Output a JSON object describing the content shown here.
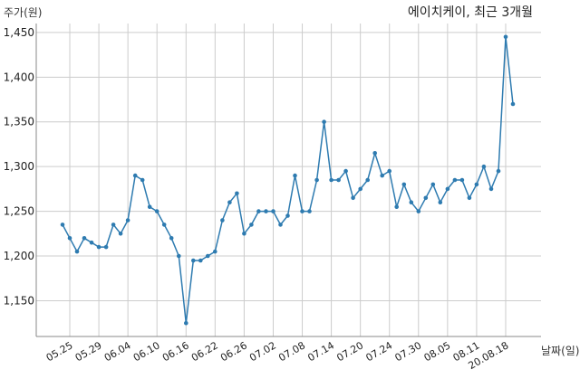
{
  "chart_data": {
    "type": "line",
    "title": "에이치케이, 최근 3개월",
    "ylabel": "주가(원)",
    "xlabel": "날짜(일)",
    "ylim": [
      1110,
      1460
    ],
    "yticks": [
      1150,
      1200,
      1250,
      1300,
      1350,
      1400,
      1450
    ],
    "ytick_labels": [
      "1,150",
      "1,200",
      "1,250",
      "1,300",
      "1,350",
      "1,400",
      "1,450"
    ],
    "xtick_labels": [
      "05.25",
      "05.29",
      "06.04",
      "06.10",
      "06.16",
      "06.22",
      "06.26",
      "07.02",
      "07.08",
      "07.14",
      "07.20",
      "07.24",
      "07.30",
      "08.05",
      "08.11",
      "20.08.18"
    ],
    "grid": true,
    "line_color": "#2e7bb0",
    "values": [
      1235,
      1220,
      1205,
      1220,
      1215,
      1210,
      1210,
      1235,
      1225,
      1240,
      1290,
      1285,
      1255,
      1250,
      1235,
      1220,
      1200,
      1125,
      1195,
      1195,
      1200,
      1205,
      1240,
      1260,
      1270,
      1225,
      1235,
      1250,
      1250,
      1250,
      1235,
      1245,
      1290,
      1250,
      1250,
      1285,
      1350,
      1285,
      1285,
      1295,
      1265,
      1275,
      1285,
      1315,
      1290,
      1295,
      1255,
      1280,
      1260,
      1250,
      1265,
      1280,
      1260,
      1275,
      1285,
      1285,
      1265,
      1280,
      1300,
      1275,
      1295,
      1445,
      1370
    ]
  }
}
